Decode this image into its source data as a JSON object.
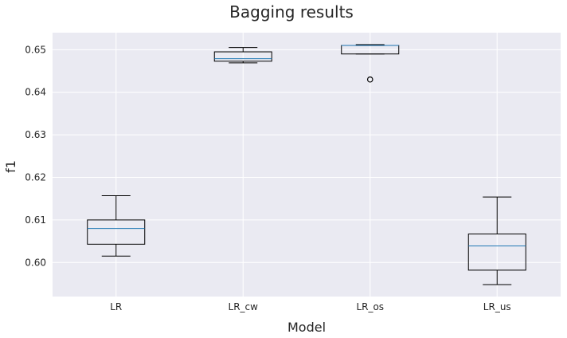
{
  "chart_data": {
    "type": "box",
    "title": "Bagging results",
    "xlabel": "Model",
    "ylabel": "f1",
    "ylim": [
      0.592,
      0.654
    ],
    "yticks": [
      "0.60",
      "0.61",
      "0.62",
      "0.63",
      "0.64",
      "0.65"
    ],
    "grid": true,
    "categories": [
      "LR",
      "LR_cw",
      "LR_os",
      "LR_us"
    ],
    "boxes": [
      {
        "category": "LR",
        "whisker_low": 0.6015,
        "q1": 0.6043,
        "median": 0.608,
        "q3": 0.61,
        "whisker_high": 0.6157,
        "outliers": []
      },
      {
        "category": "LR_cw",
        "whisker_low": 0.6469,
        "q1": 0.6473,
        "median": 0.6479,
        "q3": 0.6495,
        "whisker_high": 0.6505,
        "outliers": []
      },
      {
        "category": "LR_os",
        "whisker_low": 0.649,
        "q1": 0.649,
        "median": 0.651,
        "q3": 0.651,
        "whisker_high": 0.6512,
        "outliers": [
          0.643
        ]
      },
      {
        "category": "LR_us",
        "whisker_low": 0.5948,
        "q1": 0.5982,
        "median": 0.6039,
        "q3": 0.6067,
        "whisker_high": 0.6154,
        "outliers": []
      }
    ]
  },
  "colors": {
    "plot_background": "#eaeaf2",
    "grid": "#ffffff",
    "box": "#000000",
    "median": "#1f77b4"
  }
}
